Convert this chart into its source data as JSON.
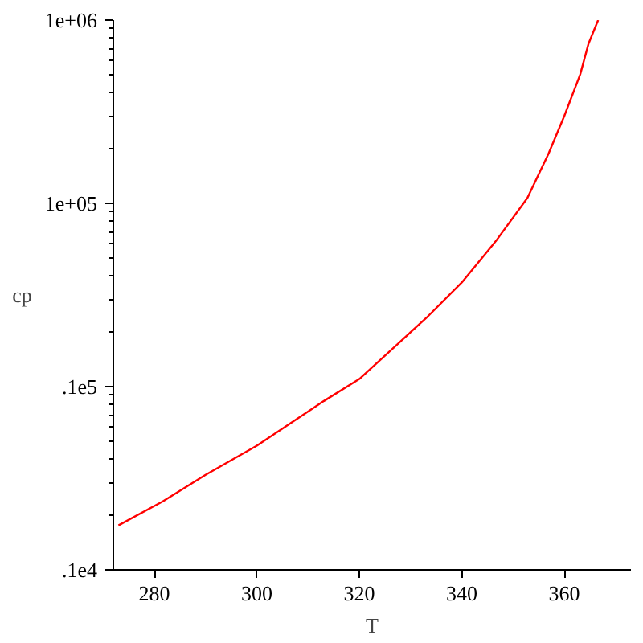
{
  "chart_data": {
    "type": "line",
    "xlabel": "T",
    "ylabel": "cp",
    "log": "y",
    "x": [
      273,
      281.6,
      290,
      300,
      313.1,
      320,
      333,
      340,
      346.6,
      352.8,
      356.9,
      360,
      363.1,
      364.7,
      366.6
    ],
    "series": [
      {
        "color": "#ff0000",
        "values": [
          1750,
          2360,
          3300,
          4760,
          8350,
          11000,
          23600,
          37000,
          62000,
          107000,
          186000,
          300000,
          505000,
          740000,
          1000000
        ]
      }
    ],
    "xlim": [
      272,
      373
    ],
    "xticks": [
      280,
      300,
      320,
      340,
      360
    ],
    "ylim": [
      1000,
      1000000
    ],
    "yticks": [
      {
        "value": 1000,
        "label": ".1e4"
      },
      {
        "value": 2000,
        "label": null
      },
      {
        "value": 3000,
        "label": null
      },
      {
        "value": 4000,
        "label": null
      },
      {
        "value": 5000,
        "label": null
      },
      {
        "value": 6000,
        "label": null
      },
      {
        "value": 7000,
        "label": null
      },
      {
        "value": 8000,
        "label": null
      },
      {
        "value": 9000,
        "label": null
      },
      {
        "value": 10000,
        "label": ".1e5"
      },
      {
        "value": 20000,
        "label": null
      },
      {
        "value": 30000,
        "label": null
      },
      {
        "value": 40000,
        "label": null
      },
      {
        "value": 50000,
        "label": null
      },
      {
        "value": 60000,
        "label": null
      },
      {
        "value": 70000,
        "label": null
      },
      {
        "value": 80000,
        "label": null
      },
      {
        "value": 90000,
        "label": null
      },
      {
        "value": 100000,
        "label": "1e+05"
      },
      {
        "value": 200000,
        "label": null
      },
      {
        "value": 300000,
        "label": null
      },
      {
        "value": 400000,
        "label": null
      },
      {
        "value": 500000,
        "label": null
      },
      {
        "value": 600000,
        "label": null
      },
      {
        "value": 700000,
        "label": null
      },
      {
        "value": 800000,
        "label": null
      },
      {
        "value": 900000,
        "label": null
      },
      {
        "value": 1000000,
        "label": "1e+06"
      }
    ],
    "grid": false,
    "line_style": "solid",
    "marker": "none"
  }
}
